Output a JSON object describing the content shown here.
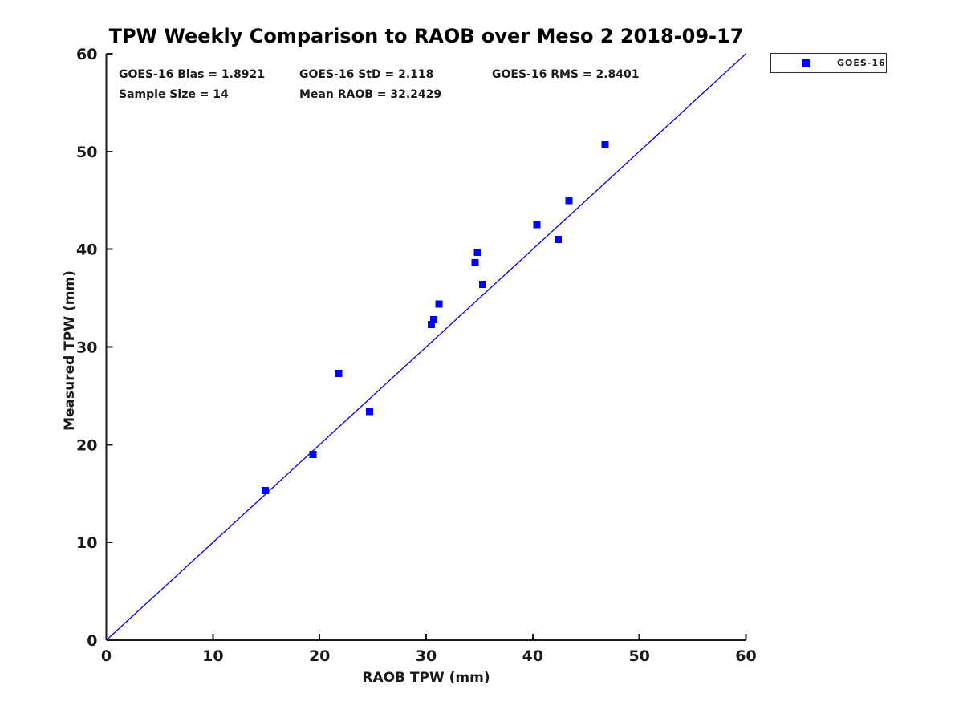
{
  "title": "TPW Weekly Comparison to RAOB over Meso 2 2018-09-17",
  "stats": {
    "bias": "GOES-16 Bias = 1.8921",
    "std": "GOES-16 StD = 2.118",
    "rms": "GOES-16 RMS = 2.8401",
    "sample_size": "Sample Size = 14",
    "mean_raob": "Mean RAOB = 32.2429"
  },
  "legend": {
    "label": "GOES-16",
    "marker_color": "#0000ff"
  },
  "colors": {
    "marker": "#0000ff",
    "reference_line": "#0000dd",
    "axis": "#1a1a1a",
    "background": "#ffffff"
  },
  "chart_data": {
    "type": "scatter",
    "title": "TPW Weekly Comparison to RAOB over Meso 2 2018-09-17",
    "xlabel": "RAOB TPW (mm)",
    "ylabel": "Measured TPW (mm)",
    "xlim": [
      0,
      60
    ],
    "ylim": [
      0,
      60
    ],
    "xticks": [
      0,
      10,
      20,
      30,
      40,
      50,
      60
    ],
    "yticks": [
      0,
      10,
      20,
      30,
      40,
      50,
      60
    ],
    "grid": false,
    "legend_position": "outside-top-right",
    "series": [
      {
        "name": "GOES-16",
        "marker": "square",
        "color": "#0000ff",
        "points": [
          [
            14.9,
            15.3
          ],
          [
            19.4,
            19.0
          ],
          [
            21.8,
            27.3
          ],
          [
            24.7,
            23.4
          ],
          [
            30.5,
            32.3
          ],
          [
            30.7,
            32.8
          ],
          [
            31.2,
            34.4
          ],
          [
            34.6,
            38.6
          ],
          [
            34.8,
            39.7
          ],
          [
            35.3,
            36.4
          ],
          [
            40.4,
            42.5
          ],
          [
            42.4,
            41.0
          ],
          [
            43.4,
            45.0
          ],
          [
            46.8,
            50.7
          ]
        ]
      }
    ],
    "reference_line": {
      "from": [
        0,
        0
      ],
      "to": [
        60,
        60
      ],
      "color": "#0000dd",
      "meaning": "1:1 line"
    },
    "annotations": [
      "GOES-16 Bias = 1.8921",
      "GOES-16 StD = 2.118",
      "GOES-16 RMS = 2.8401",
      "Sample Size = 14",
      "Mean RAOB = 32.2429"
    ]
  }
}
